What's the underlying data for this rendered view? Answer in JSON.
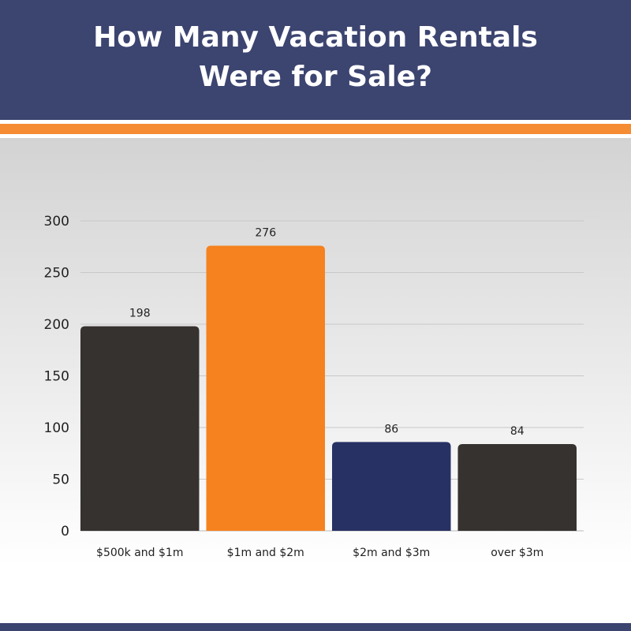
{
  "header": {
    "title": "How Many Vacation Rentals Were for Sale?"
  },
  "colors": {
    "header": "#3c4470",
    "stripe": "#f58b33"
  },
  "chart_data": {
    "type": "bar",
    "title": "",
    "xlabel": "",
    "ylabel": "",
    "categories": [
      "$500k and $1m",
      "$1m and $2m",
      "$2m and $3m",
      "over $3m"
    ],
    "values": [
      198,
      276,
      86,
      84
    ],
    "data_labels": [
      "198",
      "276",
      "86",
      "84"
    ],
    "bar_colors": [
      "#36322f",
      "#f5821f",
      "#283163",
      "#36322f"
    ],
    "ylim": [
      0,
      300
    ],
    "yticks": [
      0,
      50,
      100,
      150,
      200,
      250,
      300
    ],
    "grid": true,
    "legend": "none"
  }
}
